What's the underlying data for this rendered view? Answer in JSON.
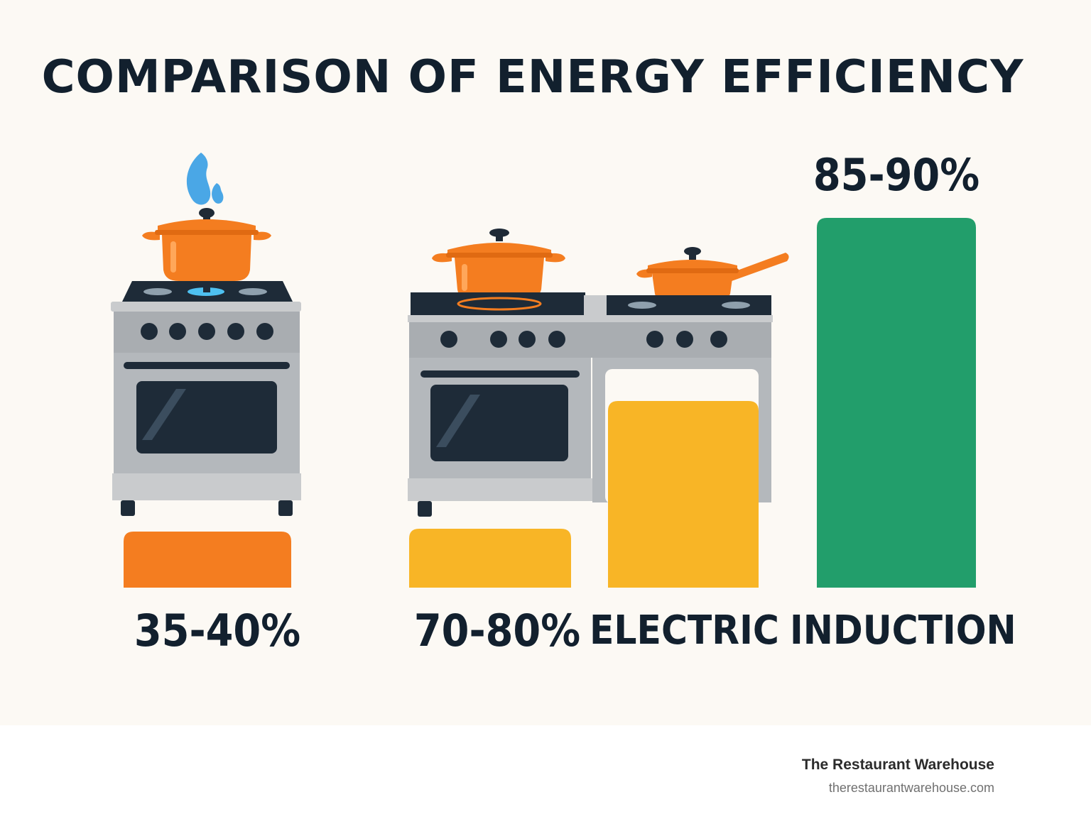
{
  "title": "COMPARISON OF ENERGY EFFICIENCY",
  "brand": {
    "name": "The Restaurant Warehouse",
    "url": "therestaurantwarehouse.com"
  },
  "colors": {
    "gas": "#f47d20",
    "electric": "#f8b526",
    "induction": "#229e6b",
    "text": "#12202e",
    "background": "#fcf9f4"
  },
  "icons": [
    "gas-stove-icon",
    "double-range-icon",
    "cooking-pot-icon",
    "saucepan-icon",
    "flame-icon"
  ],
  "chart_data": {
    "type": "bar",
    "title": "COMPARISON OF ENERGY EFFICIENCY",
    "categories": [
      "",
      "",
      "ELECTRIC",
      "INDUCTION"
    ],
    "value_labels": [
      "35-40%",
      "70-80%",
      "",
      "85-90%"
    ],
    "values": [
      {
        "low": 35,
        "high": 40
      },
      {
        "low": 70,
        "high": 80
      },
      null,
      {
        "low": 85,
        "high": 90
      }
    ],
    "ylabel": "",
    "xlabel": "",
    "grid": false,
    "legend": "none"
  }
}
